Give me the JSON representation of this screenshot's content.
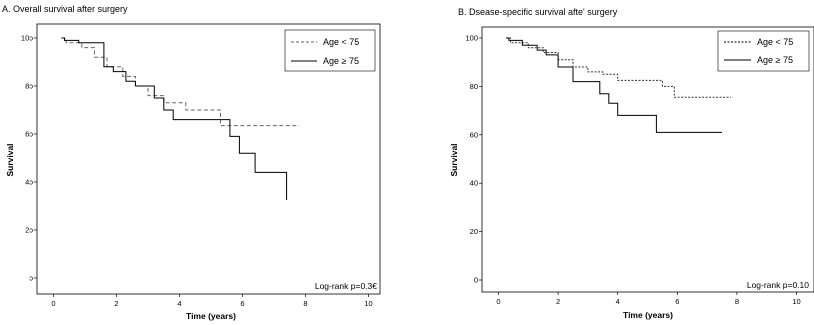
{
  "chart_data": [
    {
      "type": "line",
      "title": "A. Overall survival after surgery",
      "xlabel": "Time (years)",
      "ylabel": "Survival",
      "xlim": [
        0,
        10
      ],
      "ylim": [
        0,
        100
      ],
      "xticks": [
        0,
        2,
        4,
        6,
        8,
        10
      ],
      "yticks": [
        0,
        20,
        40,
        60,
        80,
        100
      ],
      "xtick_labels": [
        "0",
        "2",
        "4",
        "6",
        "8",
        "10"
      ],
      "ytick_labels": [
        "ɔ",
        "2ɔ",
        "4ɔ",
        "6ɔ",
        "8ɔ",
        "10ɔ"
      ],
      "grid": false,
      "legend_position": "top-right",
      "annotation": "Log-rank p=0.3€",
      "series": [
        {
          "name": "Age < 75",
          "style": "dashed",
          "color": "#666666",
          "x": [
            0.25,
            0.4,
            0.9,
            1.3,
            1.7,
            2.2,
            2.6,
            3.0,
            3.5,
            4.2,
            5.3,
            7.8
          ],
          "y": [
            100,
            98,
            96,
            92,
            88,
            84,
            80,
            76,
            73,
            70,
            63.5,
            63.5
          ]
        },
        {
          "name": "Age ≥ 75",
          "style": "solid",
          "color": "#000000",
          "x": [
            0.25,
            0.35,
            0.8,
            1.6,
            1.9,
            2.3,
            2.6,
            3.2,
            3.5,
            3.8,
            5.4,
            5.6,
            5.9,
            6.4,
            7.4
          ],
          "y": [
            100,
            99,
            98,
            88,
            86,
            82,
            80,
            75,
            70,
            66,
            66,
            59,
            52,
            44,
            32.5
          ]
        }
      ]
    },
    {
      "type": "line",
      "title": "B. Dsease-specific survival afte' surgery",
      "xlabel": "Time (years)",
      "ylabel": "Survival",
      "xlim": [
        0,
        10
      ],
      "ylim": [
        0,
        100
      ],
      "xticks": [
        0,
        2,
        4,
        6,
        8,
        10
      ],
      "yticks": [
        0,
        20,
        40,
        60,
        80,
        100
      ],
      "xtick_labels": [
        "0",
        "2",
        "4",
        "6",
        "8",
        "10"
      ],
      "ytick_labels": [
        "0",
        "20",
        "40",
        "60",
        "80",
        "100"
      ],
      "grid": false,
      "legend_position": "top-right",
      "annotation": "Log-rank p=0.10",
      "series": [
        {
          "name": "Age < 75",
          "style": "dashed",
          "color": "#333333",
          "x": [
            0.25,
            0.4,
            1.0,
            1.5,
            2.0,
            2.5,
            3.0,
            3.5,
            4.0,
            5.5,
            5.9,
            7.8
          ],
          "y": [
            100,
            98,
            96,
            94,
            91,
            88,
            86,
            85,
            82.5,
            80,
            75.5,
            75.5
          ]
        },
        {
          "name": "Age ≥ 75",
          "style": "solid",
          "color": "#000000",
          "x": [
            0.25,
            0.35,
            0.8,
            1.3,
            1.6,
            2.0,
            2.5,
            3.1,
            3.4,
            3.7,
            4.0,
            5.3,
            7.5
          ],
          "y": [
            100,
            99,
            97,
            95,
            93,
            88,
            82,
            82,
            77,
            73,
            68,
            61,
            61
          ]
        }
      ]
    }
  ]
}
